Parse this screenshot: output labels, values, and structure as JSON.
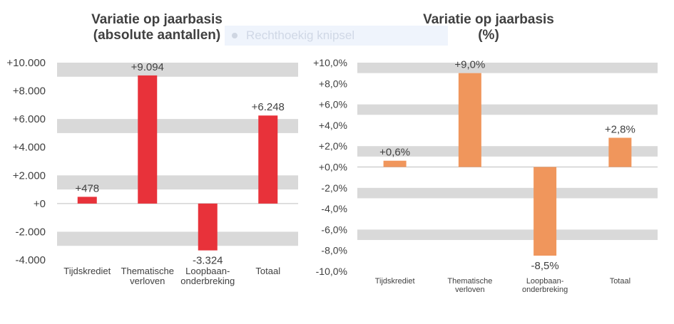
{
  "colors": {
    "band": "#d9d9d9",
    "bar_left": "#e8323a",
    "bar_right": "#f0965c",
    "text": "#404040"
  },
  "overlay": {
    "label": "Rechthoekig knipsel",
    "icon": "dot-icon"
  },
  "chart_data": [
    {
      "type": "bar",
      "title_lines": [
        "Variatie op jaarbasis",
        "(absolute aantallen)"
      ],
      "categories": [
        [
          "Tijdskrediet"
        ],
        [
          "Thematische",
          "verloven"
        ],
        [
          "Loopbaan-",
          "onderbreking"
        ],
        [
          "Totaal"
        ]
      ],
      "values": [
        478,
        9094,
        -3324,
        6248
      ],
      "value_labels": [
        "+478",
        "+9.094",
        "-3.324",
        "+6.248"
      ],
      "ylim": [
        -4000,
        10000
      ],
      "yticks": [
        10000,
        8000,
        6000,
        4000,
        2000,
        0,
        -2000,
        -4000
      ],
      "ytick_labels": [
        "+10.000",
        "+8.000",
        "+6.000",
        "+4.000",
        "+2.000",
        "+0",
        "-2.000",
        "-4.000"
      ],
      "xlabel": "",
      "ylabel": "",
      "grid": "banded",
      "legend": "none"
    },
    {
      "type": "bar",
      "title_lines": [
        "Variatie op jaarbasis",
        "(%)"
      ],
      "categories": [
        [
          "Tijdskrediet"
        ],
        [
          "Thematische",
          "verloven"
        ],
        [
          "Loopbaan-",
          "onderbreking"
        ],
        [
          "Totaal"
        ]
      ],
      "values": [
        0.6,
        9.0,
        -8.5,
        2.8
      ],
      "value_labels": [
        "+0,6%",
        "+9,0%",
        "-8,5%",
        "+2,8%"
      ],
      "ylim": [
        -10,
        10
      ],
      "yticks": [
        10,
        8,
        6,
        4,
        2,
        0,
        -2,
        -4,
        -6,
        -8,
        -10
      ],
      "ytick_labels": [
        "+10,0%",
        "+8,0%",
        "+6,0%",
        "+4,0%",
        "+2,0%",
        "+0,0%",
        "-2,0%",
        "-4,0%",
        "-6,0%",
        "-8,0%",
        "-10,0%"
      ],
      "xlabel": "",
      "ylabel": "",
      "grid": "banded",
      "legend": "none"
    }
  ]
}
